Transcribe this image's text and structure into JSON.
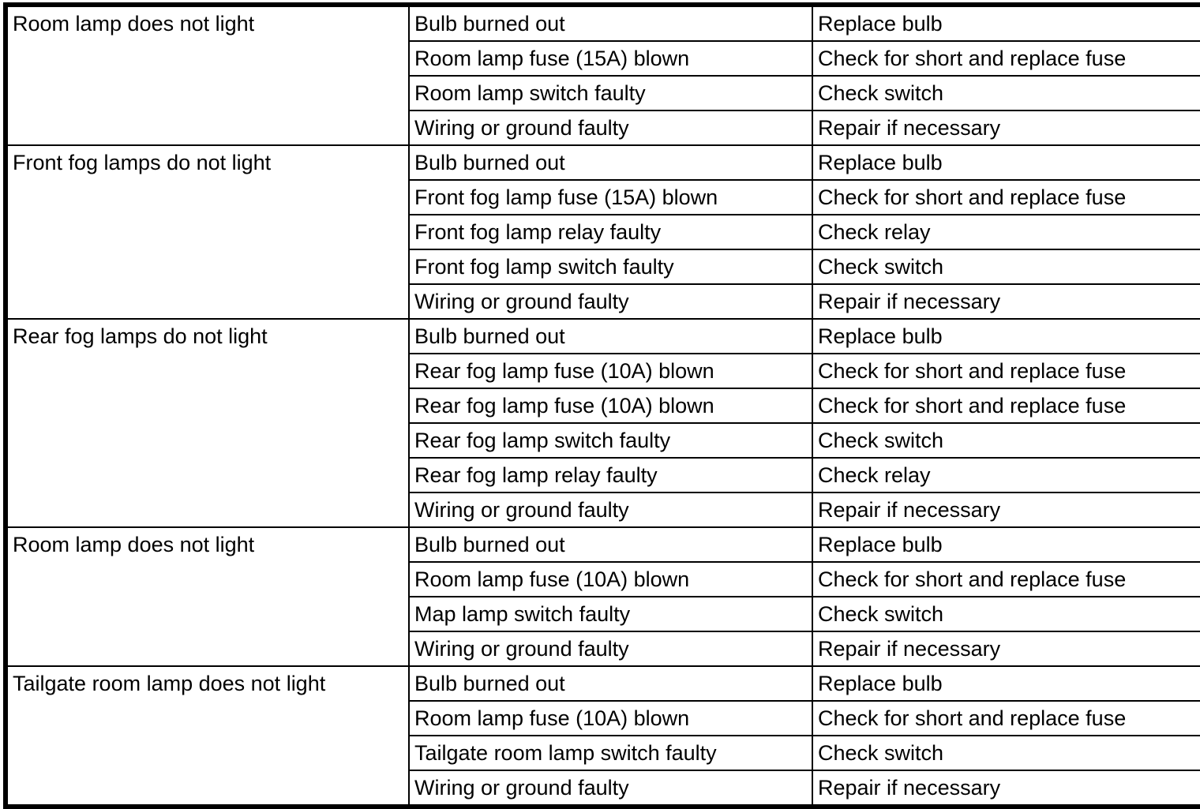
{
  "page": {
    "background_color": "#ffffff",
    "border_color": "#000000",
    "text_color": "#000000"
  },
  "table": {
    "sections": [
      {
        "symptom": "Room lamp does not light",
        "rows": [
          {
            "cause": "Bulb burned out",
            "remedy": "Replace bulb"
          },
          {
            "cause": "Room lamp fuse (15A) blown",
            "remedy": "Check for short and replace fuse"
          },
          {
            "cause": "Room lamp switch faulty",
            "remedy": "Check switch"
          },
          {
            "cause": "Wiring or ground faulty",
            "remedy": "Repair if necessary"
          }
        ]
      },
      {
        "symptom": "Front fog lamps do not light",
        "rows": [
          {
            "cause": "Bulb burned out",
            "remedy": "Replace bulb"
          },
          {
            "cause": "Front fog lamp fuse (15A) blown",
            "remedy": "Check for short and replace fuse"
          },
          {
            "cause": "Front fog lamp relay faulty",
            "remedy": "Check relay"
          },
          {
            "cause": "Front fog lamp switch faulty",
            "remedy": "Check switch"
          },
          {
            "cause": "Wiring or ground faulty",
            "remedy": "Repair if necessary"
          }
        ]
      },
      {
        "symptom": "Rear fog lamps do not light",
        "rows": [
          {
            "cause": "Bulb burned out",
            "remedy": "Replace bulb"
          },
          {
            "cause": "Rear fog lamp fuse (10A) blown",
            "remedy": "Check for short and replace fuse"
          },
          {
            "cause": "Rear fog lamp fuse (10A) blown",
            "remedy": "Check for short and replace fuse"
          },
          {
            "cause": "Rear fog lamp switch faulty",
            "remedy": "Check switch"
          },
          {
            "cause": "Rear fog lamp relay faulty",
            "remedy": "Check relay"
          },
          {
            "cause": "Wiring or ground faulty",
            "remedy": "Repair if necessary"
          }
        ]
      },
      {
        "symptom": "Room lamp does not light",
        "rows": [
          {
            "cause": "Bulb burned out",
            "remedy": "Replace bulb"
          },
          {
            "cause": "Room lamp fuse (10A) blown",
            "remedy": "Check for short and replace fuse"
          },
          {
            "cause": "Map lamp switch faulty",
            "remedy": "Check switch"
          },
          {
            "cause": "Wiring or ground faulty",
            "remedy": "Repair if necessary"
          }
        ]
      },
      {
        "symptom": "Tailgate room lamp does not light",
        "rows": [
          {
            "cause": "Bulb burned out",
            "remedy": "Replace bulb"
          },
          {
            "cause": "Room lamp fuse (10A) blown",
            "remedy": "Check for short and replace fuse"
          },
          {
            "cause": "Tailgate room lamp switch faulty",
            "remedy": "Check switch"
          },
          {
            "cause": "Wiring or ground faulty",
            "remedy": "Repair if necessary"
          }
        ]
      }
    ]
  }
}
